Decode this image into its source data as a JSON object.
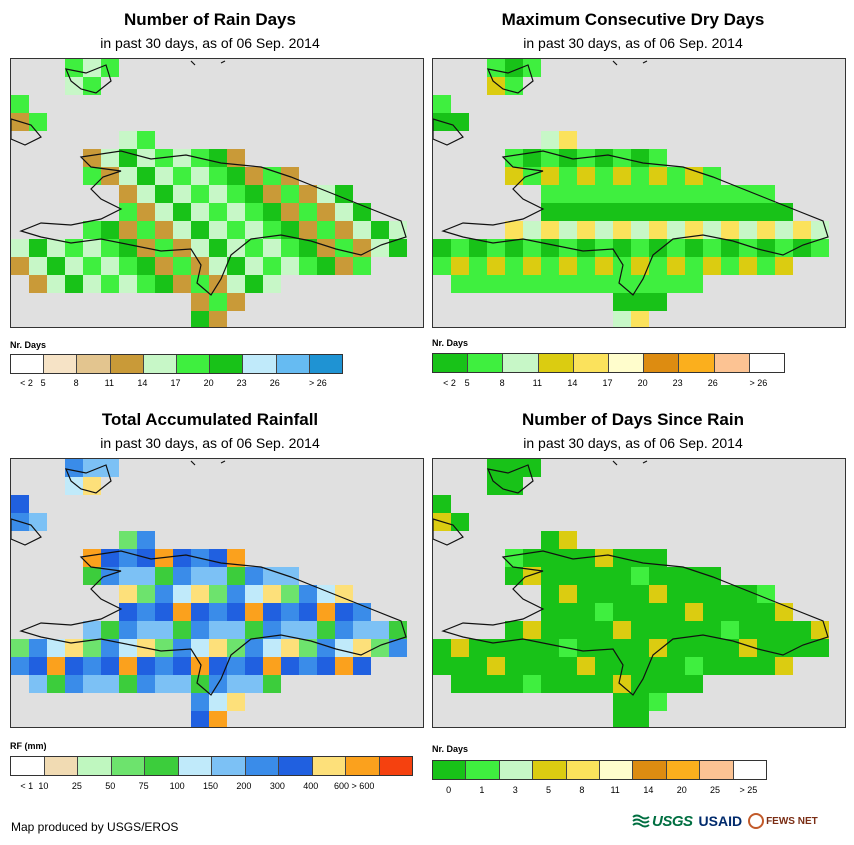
{
  "panels": [
    {
      "title": "Number of Rain Days",
      "subtitle": "in past 30 days, as of 06 Sep. 2014",
      "legend_title": "Nr. Days",
      "legend_colors": [
        "#ffffff",
        "#f6e3c6",
        "#e3c58f",
        "#c99a38",
        "#c7f7c7",
        "#3fef3f",
        "#18c218",
        "#c0eafa",
        "#66bbf2",
        "#1f93d3"
      ],
      "legend_labels": [
        "< 2",
        "5",
        "8",
        "11",
        "14",
        "17",
        "20",
        "23",
        "26",
        "> 26"
      ]
    },
    {
      "title": "Maximum Consecutive Dry Days",
      "subtitle": "in past 30 days, as of 06 Sep. 2014",
      "legend_title": "Nr. Days",
      "legend_colors": [
        "#18c218",
        "#3fef3f",
        "#c7f7c7",
        "#dbcc11",
        "#fbe25c",
        "#fffdcc",
        "#dd8c11",
        "#fbaf1d",
        "#fcc393",
        "#ffffff"
      ],
      "legend_labels": [
        "< 2",
        "5",
        "8",
        "11",
        "14",
        "17",
        "20",
        "23",
        "26",
        "> 26"
      ]
    },
    {
      "title": "Total Accumulated Rainfall",
      "subtitle": "in past 30 days, as of 06 Sep. 2014",
      "legend_title": "RF (mm)",
      "legend_colors": [
        "#ffffff",
        "#f1dbb3",
        "#bff7bf",
        "#6de36d",
        "#3ccd3c",
        "#c0eafa",
        "#7cc1f5",
        "#3a8ce9",
        "#2060e0",
        "#fde07a",
        "#fba11d",
        "#f5410f"
      ],
      "legend_labels": [
        "< 1",
        "10",
        "25",
        "50",
        "75",
        "100",
        "150",
        "200",
        "300",
        "400",
        "600 > 600"
      ]
    },
    {
      "title": "Number of Days Since Rain",
      "subtitle": "in past 30 days, as of 06 Sep. 2014",
      "legend_title": "Nr. Days",
      "legend_colors": [
        "#18c218",
        "#3fef3f",
        "#c7f7c7",
        "#dbcc11",
        "#fbe25c",
        "#fffdcc",
        "#dd8c11",
        "#fbaf1d",
        "#fcc393",
        "#ffffff"
      ],
      "legend_labels": [
        "0",
        "1",
        "3",
        "5",
        "8",
        "11",
        "14",
        "20",
        "25",
        "> 25"
      ]
    }
  ],
  "map_background": "#e0e0e0",
  "footer": {
    "credit": "Map produced by USGS/EROS"
  },
  "logos": {
    "usgs": "USGS",
    "usaid": "USAID",
    "fews": "FEWS NET"
  }
}
